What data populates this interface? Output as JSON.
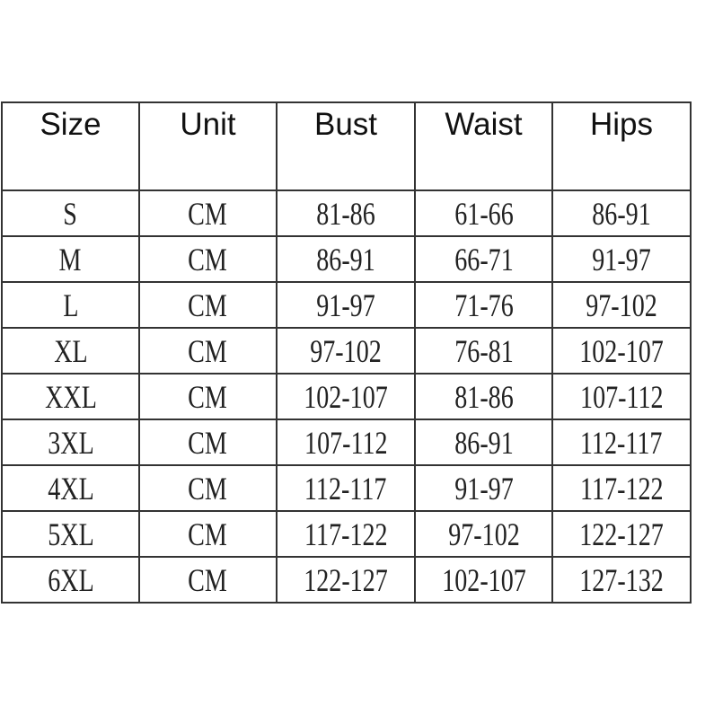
{
  "table": {
    "headers": [
      "Size",
      "Unit",
      "Bust",
      "Waist",
      "Hips"
    ],
    "rows": [
      [
        "S",
        "CM",
        "81-86",
        "61-66",
        "86-91"
      ],
      [
        "M",
        "CM",
        "86-91",
        "66-71",
        "91-97"
      ],
      [
        "L",
        "CM",
        "91-97",
        "71-76",
        "97-102"
      ],
      [
        "XL",
        "CM",
        "97-102",
        "76-81",
        "102-107"
      ],
      [
        "XXL",
        "CM",
        "102-107",
        "81-86",
        "107-112"
      ],
      [
        "3XL",
        "CM",
        "107-112",
        "86-91",
        "112-117"
      ],
      [
        "4XL",
        "CM",
        "112-117",
        "91-97",
        "117-122"
      ],
      [
        "5XL",
        "CM",
        "117-122",
        "97-102",
        "122-127"
      ],
      [
        "6XL",
        "CM",
        "122-127",
        "102-107",
        "127-132"
      ]
    ]
  }
}
